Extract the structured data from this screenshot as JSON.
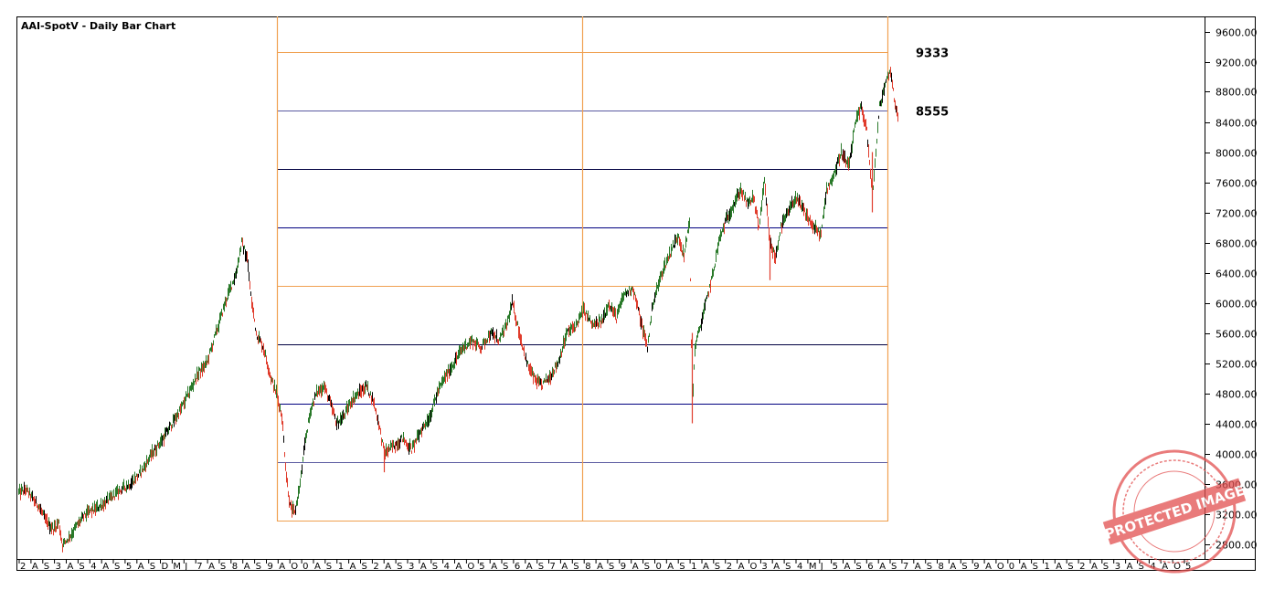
{
  "chart_data": {
    "type": "bar",
    "title": "AAI-SpotV - Daily Bar Chart",
    "ylim": [
      2600,
      9800
    ],
    "y_ticks": [
      "9600.00",
      "9200.00",
      "8800.00",
      "8400.00",
      "8000.00",
      "7600.00",
      "7200.00",
      "6800.00",
      "6400.00",
      "6000.00",
      "5600.00",
      "5200.00",
      "4800.00",
      "4400.00",
      "4000.00",
      "3600.00",
      "3200.00",
      "2800.00"
    ],
    "y_tick_values": [
      9600,
      9200,
      8800,
      8400,
      8000,
      7600,
      7200,
      6800,
      6400,
      6000,
      5600,
      5200,
      4800,
      4400,
      4000,
      3600,
      3200,
      2800
    ],
    "x_ticks": [
      "2",
      "A",
      "S",
      "3",
      "A",
      "S",
      "4",
      "A",
      "S",
      "5",
      "A",
      "S",
      "D",
      "M",
      "J",
      "7",
      "A",
      "S",
      "8",
      "A",
      "S",
      "9",
      "A",
      "O",
      "0",
      "A",
      "S",
      "1",
      "A",
      "S",
      "2",
      "A",
      "S",
      "3",
      "A",
      "S",
      "4",
      "A",
      "O",
      "5",
      "A",
      "S",
      "6",
      "A",
      "S",
      "7",
      "A",
      "S",
      "8",
      "A",
      "S",
      "9",
      "A",
      "S",
      "0",
      "A",
      "S",
      "1",
      "A",
      "S",
      "2",
      "A",
      "O",
      "3",
      "A",
      "S",
      "4",
      "M",
      "J",
      "5",
      "A",
      "S",
      "6",
      "A",
      "S",
      "7",
      "A",
      "S",
      "8",
      "A",
      "S",
      "9",
      "A",
      "O",
      "0",
      "A",
      "S",
      "1",
      "A",
      "S",
      "2",
      "A",
      "S",
      "3",
      "A",
      "S",
      "4",
      "A",
      "O",
      "5"
    ],
    "levels": [
      {
        "value": 9333,
        "label": "9333",
        "color": "#f0a050"
      },
      {
        "value": 8555,
        "label": "8555",
        "color": "#5a5aa0"
      },
      {
        "value": 7777,
        "color": "#000040"
      },
      {
        "value": 7000,
        "color": "#000080"
      },
      {
        "value": 6222,
        "color": "#f0a050"
      },
      {
        "value": 5444,
        "color": "#000040"
      },
      {
        "value": 4666,
        "color": "#000080"
      },
      {
        "value": 3888,
        "color": "#5a5aa0"
      },
      {
        "value": 3111,
        "color": "#f0a050"
      }
    ],
    "series_path": [
      [
        0,
        3480
      ],
      [
        8,
        3520
      ],
      [
        14,
        3420
      ],
      [
        22,
        3300
      ],
      [
        30,
        3100
      ],
      [
        38,
        3000
      ],
      [
        44,
        3080
      ],
      [
        48,
        2780
      ],
      [
        56,
        2900
      ],
      [
        64,
        3050
      ],
      [
        74,
        3200
      ],
      [
        86,
        3280
      ],
      [
        98,
        3380
      ],
      [
        110,
        3500
      ],
      [
        122,
        3600
      ],
      [
        134,
        3750
      ],
      [
        146,
        4000
      ],
      [
        158,
        4200
      ],
      [
        168,
        4400
      ],
      [
        178,
        4600
      ],
      [
        188,
        4850
      ],
      [
        196,
        5050
      ],
      [
        206,
        5200
      ],
      [
        216,
        5600
      ],
      [
        226,
        6000
      ],
      [
        232,
        6200
      ],
      [
        238,
        6400
      ],
      [
        244,
        6800
      ],
      [
        250,
        6600
      ],
      [
        254,
        6100
      ],
      [
        260,
        5600
      ],
      [
        268,
        5400
      ],
      [
        276,
        5000
      ],
      [
        282,
        4800
      ],
      [
        288,
        4500
      ],
      [
        293,
        3700
      ],
      [
        297,
        3300
      ],
      [
        302,
        3200
      ],
      [
        308,
        3600
      ],
      [
        314,
        4200
      ],
      [
        320,
        4600
      ],
      [
        326,
        4800
      ],
      [
        334,
        4900
      ],
      [
        340,
        4700
      ],
      [
        348,
        4400
      ],
      [
        356,
        4500
      ],
      [
        364,
        4700
      ],
      [
        372,
        4800
      ],
      [
        380,
        4900
      ],
      [
        388,
        4700
      ],
      [
        394,
        4400
      ],
      [
        400,
        4000
      ],
      [
        410,
        4100
      ],
      [
        420,
        4200
      ],
      [
        430,
        4050
      ],
      [
        440,
        4300
      ],
      [
        450,
        4500
      ],
      [
        458,
        4800
      ],
      [
        466,
        5000
      ],
      [
        476,
        5200
      ],
      [
        486,
        5400
      ],
      [
        496,
        5500
      ],
      [
        506,
        5400
      ],
      [
        516,
        5600
      ],
      [
        526,
        5500
      ],
      [
        534,
        5700
      ],
      [
        540,
        6000
      ],
      [
        548,
        5600
      ],
      [
        556,
        5200
      ],
      [
        564,
        5000
      ],
      [
        572,
        4900
      ],
      [
        580,
        5000
      ],
      [
        590,
        5200
      ],
      [
        600,
        5600
      ],
      [
        610,
        5700
      ],
      [
        618,
        5900
      ],
      [
        628,
        5700
      ],
      [
        638,
        5750
      ],
      [
        646,
        6000
      ],
      [
        654,
        5800
      ],
      [
        662,
        6100
      ],
      [
        672,
        6200
      ],
      [
        680,
        5800
      ],
      [
        688,
        5400
      ],
      [
        694,
        6000
      ],
      [
        704,
        6400
      ],
      [
        714,
        6700
      ],
      [
        722,
        6900
      ],
      [
        728,
        6600
      ],
      [
        734,
        7100
      ],
      [
        737,
        4600
      ],
      [
        740,
        5400
      ],
      [
        744,
        5600
      ],
      [
        752,
        6000
      ],
      [
        760,
        6400
      ],
      [
        766,
        6800
      ],
      [
        774,
        7100
      ],
      [
        782,
        7300
      ],
      [
        790,
        7500
      ],
      [
        798,
        7300
      ],
      [
        804,
        7400
      ],
      [
        810,
        7000
      ],
      [
        816,
        7600
      ],
      [
        822,
        6800
      ],
      [
        828,
        6600
      ],
      [
        834,
        7000
      ],
      [
        842,
        7200
      ],
      [
        850,
        7400
      ],
      [
        860,
        7200
      ],
      [
        870,
        7000
      ],
      [
        878,
        6900
      ],
      [
        884,
        7500
      ],
      [
        892,
        7700
      ],
      [
        900,
        8000
      ],
      [
        908,
        7800
      ],
      [
        916,
        8400
      ],
      [
        922,
        8600
      ],
      [
        928,
        8300
      ],
      [
        934,
        7400
      ],
      [
        938,
        8000
      ],
      [
        942,
        8600
      ],
      [
        948,
        8900
      ],
      [
        954,
        9100
      ],
      [
        958,
        8700
      ],
      [
        962,
        8500
      ]
    ]
  },
  "watermark": {
    "text": "PROTECTED IMAGE"
  },
  "colors": {
    "up": "#2a7a2a",
    "down": "#e03c2c",
    "black": "#000000",
    "cycle_line": "#f0a050"
  }
}
